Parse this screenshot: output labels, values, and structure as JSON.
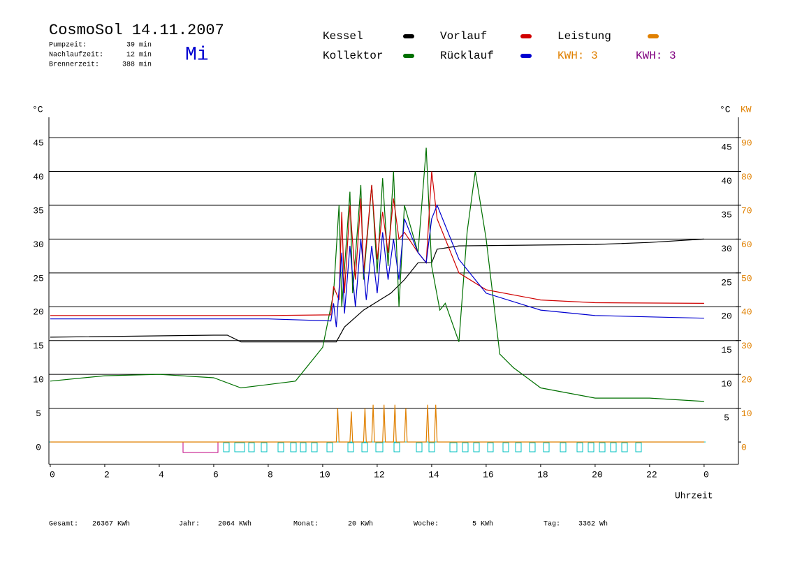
{
  "chart_data": {
    "type": "line",
    "title": "CosmoSol 14.11.2007",
    "day": "Mi",
    "stats": [
      {
        "label": "Pumpzeit:",
        "value": "39 min"
      },
      {
        "label": "Nachlaufzeit:",
        "value": "12 min"
      },
      {
        "label": "Brennerzeit:",
        "value": "388 min"
      }
    ],
    "kwh_labels": [
      {
        "text": "KWH: 3",
        "color": "#e08000"
      },
      {
        "text": "KWH: 3",
        "color": "#800080"
      }
    ],
    "y_label": "°C",
    "y_right_label": "°C",
    "y2_label": "KW",
    "x_label": "Uhrzeit",
    "xlim": [
      -0.05,
      25.26
    ],
    "xticks": [
      0,
      2,
      4,
      6,
      8,
      10,
      12,
      14,
      16,
      18,
      20,
      22,
      {
        "value": 24,
        "label": "0"
      }
    ],
    "ylim": [
      -3.3,
      48
    ],
    "yticks": [
      0,
      5,
      10,
      15,
      20,
      25,
      30,
      35,
      40,
      45
    ],
    "yticks_right": [
      5,
      10,
      15,
      20,
      25,
      30,
      35,
      40,
      45
    ],
    "y2lim": [
      -6.6,
      96
    ],
    "y2ticks": [
      0,
      10,
      20,
      30,
      40,
      50,
      60,
      70,
      80,
      90
    ],
    "grid": true,
    "series": [
      {
        "name": "Kessel",
        "color": "#000000",
        "x": [
          0,
          6,
          6.5,
          7,
          10.5,
          10.8,
          11.5,
          12.5,
          13,
          13.5,
          14,
          14.2,
          15,
          20,
          22,
          24
        ],
        "values": [
          15.5,
          15.8,
          15.8,
          14.8,
          14.8,
          17,
          19.5,
          22,
          24,
          26.5,
          26.5,
          28.5,
          29,
          29.2,
          29.5,
          30
        ]
      },
      {
        "name": "Kollektor",
        "color": "#007000",
        "x": [
          0,
          2,
          4,
          6,
          7,
          8,
          9,
          10,
          10.4,
          10.6,
          10.7,
          11,
          11.1,
          11.4,
          11.5,
          11.8,
          12,
          12.2,
          12.4,
          12.6,
          12.8,
          13,
          13.5,
          13.8,
          14,
          14.3,
          14.5,
          15,
          15.3,
          15.6,
          16,
          16.5,
          17,
          18,
          20,
          22,
          24
        ],
        "values": [
          9,
          9.8,
          10,
          9.5,
          8,
          8.5,
          9,
          14,
          22,
          35,
          20,
          37,
          22,
          38,
          24,
          38,
          25,
          39,
          26,
          40,
          20,
          35,
          28,
          43.5,
          26,
          19.5,
          20.5,
          14.8,
          31,
          40,
          30,
          13,
          11,
          8,
          6.5,
          6.5,
          6
        ]
      },
      {
        "name": "Vorlauf",
        "color": "#d00000",
        "x": [
          0,
          8,
          10.3,
          10.4,
          10.6,
          10.7,
          10.8,
          11,
          11.2,
          11.4,
          11.5,
          11.8,
          12,
          12.2,
          12.4,
          12.6,
          12.8,
          13,
          13.5,
          13.8,
          14,
          14.2,
          15,
          16,
          18,
          20,
          24
        ],
        "values": [
          18.7,
          18.7,
          18.8,
          23,
          21,
          34,
          22,
          35,
          24,
          36,
          25,
          38,
          27,
          34,
          28,
          36,
          30,
          31,
          28,
          26.5,
          40,
          33,
          25,
          22.5,
          21,
          20.6,
          20.5
        ]
      },
      {
        "name": "Rücklauf",
        "color": "#0000d0",
        "x": [
          0,
          8,
          10.3,
          10.4,
          10.5,
          10.7,
          10.8,
          11,
          11.2,
          11.4,
          11.6,
          11.8,
          12,
          12.2,
          12.4,
          12.6,
          12.8,
          13,
          13.5,
          13.8,
          14,
          14.2,
          15,
          16,
          18,
          20,
          24
        ],
        "values": [
          18.2,
          18.2,
          17.9,
          20.5,
          17,
          28,
          19,
          29,
          20,
          30,
          21,
          29,
          22,
          31,
          24,
          30,
          24,
          33,
          28,
          26.5,
          33,
          35,
          27,
          22,
          19.5,
          18.7,
          18.3
        ]
      },
      {
        "name": "Leistung",
        "color": "#e08000",
        "axis": "y2",
        "x": [
          0,
          10.5,
          10.55,
          10.6,
          11,
          11.05,
          11.1,
          11.5,
          11.55,
          11.6,
          11.8,
          11.85,
          11.9,
          12.2,
          12.25,
          12.3,
          12.6,
          12.65,
          12.7,
          13,
          13.05,
          13.1,
          13.8,
          13.85,
          13.9,
          14.1,
          14.15,
          14.2,
          24
        ],
        "values": [
          0,
          0,
          10,
          0,
          0,
          9,
          0,
          0,
          10,
          0,
          0,
          11,
          0,
          0,
          11,
          0,
          0,
          11,
          0,
          0,
          10,
          0,
          0,
          11,
          0,
          0,
          11,
          0,
          0
        ]
      }
    ],
    "footer": [
      {
        "label": "Gesamt:",
        "value": "26367 KWh"
      },
      {
        "label": "Jahr:",
        "value": "2064 KWh"
      },
      {
        "label": "Monat:",
        "value": "20 KWh"
      },
      {
        "label": "Woche:",
        "value": "5 KWh"
      },
      {
        "label": "Tag:",
        "value": "3362 Wh"
      }
    ]
  }
}
